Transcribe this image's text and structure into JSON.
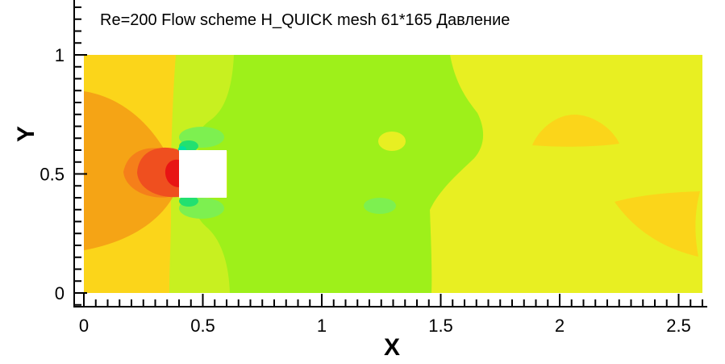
{
  "chart_data": {
    "type": "heatmap",
    "title": "Re=200 Flow scheme H_QUICK mesh 61*165   Давление",
    "xlabel": "X",
    "ylabel": "Y",
    "xlim": [
      0,
      2.6
    ],
    "ylim": [
      0,
      1
    ],
    "x_ticks": [
      {
        "value": 0,
        "label": "0"
      },
      {
        "value": 0.5,
        "label": "0.5"
      },
      {
        "value": 1,
        "label": "1"
      },
      {
        "value": 1.5,
        "label": "1.5"
      },
      {
        "value": 2,
        "label": "2"
      },
      {
        "value": 2.5,
        "label": "2.5"
      }
    ],
    "y_ticks": [
      {
        "value": 0,
        "label": "0"
      },
      {
        "value": 0.5,
        "label": "0.5"
      },
      {
        "value": 1,
        "label": "1"
      }
    ],
    "obstacle": {
      "x": [
        0.4,
        0.6
      ],
      "y": [
        0.4,
        0.6
      ]
    },
    "grid": false,
    "legend": "none",
    "colors": {
      "low": "#22e070",
      "low_mid": "#7df050",
      "mid_low": "#9ef01a",
      "mid": "#c8f020",
      "mid_high": "#e8ef22",
      "high_low": "#fbd51a",
      "high": "#f5a415",
      "high_mid": "#f57f1a",
      "very_high": "#ef4f1f",
      "peak": "#e81414",
      "min": "#00e0a0",
      "obstacle": "#ffffff"
    }
  }
}
